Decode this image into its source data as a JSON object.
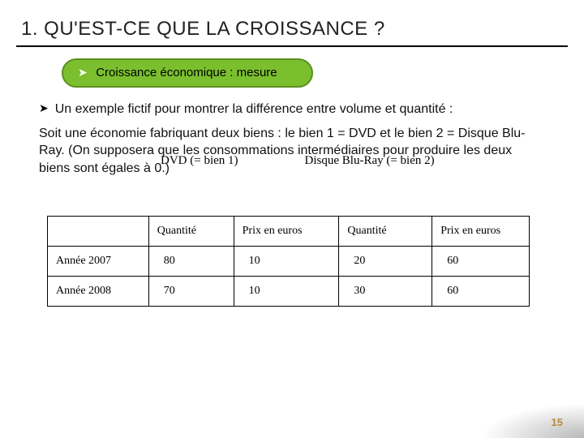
{
  "title": "1. QU'EST-CE QUE LA CROISSANCE ?",
  "pill": {
    "arrow": "➤",
    "text": "Croissance économique : mesure"
  },
  "bullet": {
    "arrow": "➤",
    "text": "Un exemple fictif pour montrer la différence entre volume et quantité :"
  },
  "paragraph": "Soit une économie fabriquant deux biens : le bien 1 = DVD et le bien 2 = Disque Blu-Ray. (On supposera que les consommations intermédiaires pour produire les deux biens sont égales à 0.)",
  "overlap": {
    "left": "DVD (= bien 1)",
    "right": "Disque Blu-Ray (= bien 2)"
  },
  "table": {
    "headers": [
      "",
      "Quantité",
      "Prix en euros",
      "Quantité",
      "Prix en euros"
    ],
    "rows": [
      {
        "label": "Année 2007",
        "cells": [
          "80",
          "10",
          "20",
          "60"
        ]
      },
      {
        "label": "Année 2008",
        "cells": [
          "70",
          "10",
          "30",
          "60"
        ]
      }
    ],
    "col_widths": [
      "125px",
      "105px",
      "130px",
      "115px",
      "120px"
    ]
  },
  "page_number": "15",
  "colors": {
    "pill_bg": "#7bbf2e",
    "pill_border": "#5a8f1f",
    "pagenum": "#b58a3a"
  }
}
